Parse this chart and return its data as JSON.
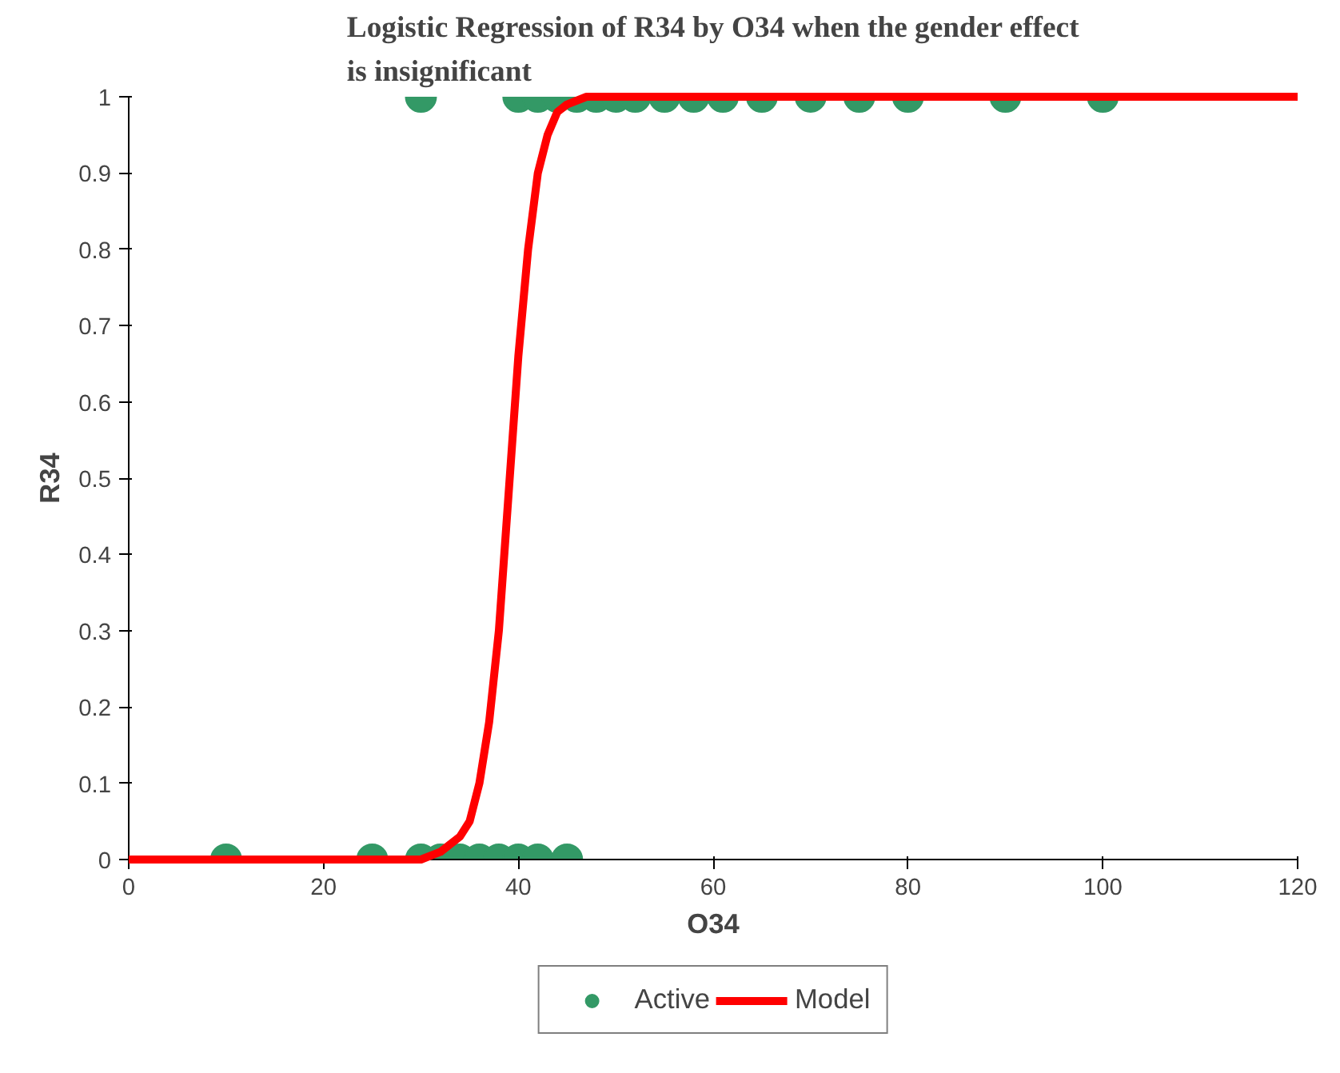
{
  "chart_data": {
    "type": "scatter",
    "title": "Logistic Regression of R34 by O34 when the gender effect\nis insignificant",
    "xlabel": "O34",
    "ylabel": "R34",
    "xlim": [
      0,
      120
    ],
    "xticks": [
      0,
      20,
      40,
      60,
      80,
      100,
      120
    ],
    "ylim": [
      0,
      1
    ],
    "yticks": [
      0,
      0.1,
      0.2,
      0.3,
      0.4,
      0.5,
      0.6,
      0.7,
      0.8,
      0.9,
      1
    ],
    "grid": false,
    "legend": "bottom",
    "series": [
      {
        "name": "Model",
        "type": "line",
        "marker": "none",
        "color": "#ff0000",
        "line_style": "solid",
        "x": [
          0,
          30,
          32,
          34,
          35,
          36,
          37,
          38,
          39,
          40,
          41,
          42,
          43,
          44,
          45,
          47,
          120
        ],
        "values": [
          0,
          0,
          0.01,
          0.03,
          0.05,
          0.1,
          0.18,
          0.3,
          0.48,
          0.66,
          0.8,
          0.9,
          0.95,
          0.98,
          0.99,
          1,
          1
        ]
      },
      {
        "name": "Active",
        "marker": "circle",
        "color": "#339966",
        "x": [
          30,
          40,
          42,
          44,
          46,
          48,
          50,
          52,
          55,
          58,
          61,
          65,
          70,
          75,
          80,
          90,
          100,
          10,
          25,
          30,
          32,
          34,
          36,
          38,
          40,
          42,
          45
        ],
        "values": [
          1,
          1,
          1,
          1,
          1,
          1,
          1,
          1,
          1,
          1,
          1,
          1,
          1,
          1,
          1,
          1,
          1,
          0,
          0,
          0,
          0,
          0,
          0,
          0,
          0,
          0,
          0
        ]
      }
    ]
  }
}
